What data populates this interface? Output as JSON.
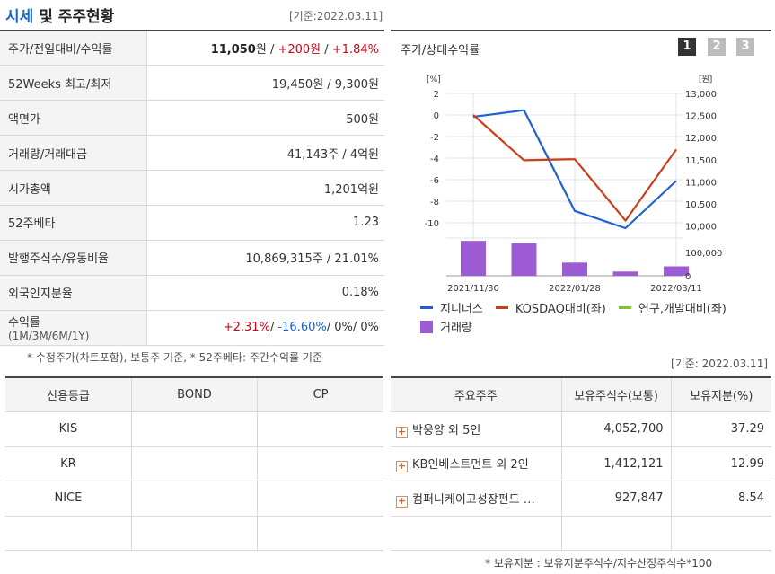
{
  "header": {
    "title_highlight": "시세",
    "title_rest": " 및 주주현황",
    "date": "[기준:2022.03.11]"
  },
  "quote": {
    "rows": [
      {
        "label": "주가/전일대비/수익률",
        "price": "11,050",
        "price_unit": "원 / ",
        "change": "+200원",
        "sep": " / ",
        "pct": "+1.84%"
      },
      {
        "label": "52Weeks 최고/최저",
        "value": "19,450원 / 9,300원"
      },
      {
        "label": "액면가",
        "value": "500원"
      },
      {
        "label": "거래량/거래대금",
        "value": "41,143주 / 4억원"
      },
      {
        "label": "시가총액",
        "value": "1,201억원"
      },
      {
        "label": "52주베타",
        "value": "1.23"
      },
      {
        "label": "발행주식수/유동비율",
        "value": "10,869,315주 / 21.01%"
      },
      {
        "label": "외국인지분율",
        "value": "0.18%"
      },
      {
        "label": "수익률",
        "label_sub": "(1M/3M/6M/1Y)",
        "r1": "+2.31%",
        "s1": "/ ",
        "r2": "-16.60%",
        "s2": "/ ",
        "r3": "0%",
        "s3": "/ ",
        "r4": "0%"
      }
    ],
    "note": "* 수정주가(차트포함), 보통주 기준, * 52주베타: 주간수익률 기준"
  },
  "credit": {
    "headers": [
      "신용등급",
      "BOND",
      "CP"
    ],
    "rows": [
      [
        "KIS",
        "",
        ""
      ],
      [
        "KR",
        "",
        ""
      ],
      [
        "NICE",
        "",
        ""
      ],
      [
        "",
        "",
        ""
      ]
    ]
  },
  "chart": {
    "title": "주가/상대수익률",
    "pages": [
      "1",
      "2",
      "3"
    ],
    "legend": [
      {
        "name": "지니너스",
        "color": "#1c62d6",
        "kind": "line"
      },
      {
        "name": "KOSDAQ대비(좌)",
        "color": "#c8401a",
        "kind": "line"
      },
      {
        "name": "연구,개발대비(좌)",
        "color": "#7cc52a",
        "kind": "line"
      },
      {
        "name": "거래량",
        "color": "#9d5cd4",
        "kind": "bar"
      }
    ]
  },
  "chart_data": {
    "type": "line",
    "x": [
      "2021/11/30",
      "2021/12/28",
      "2022/01/28",
      "2022/02/28",
      "2022/03/11"
    ],
    "x_tick_labels": [
      "2021/11/30",
      "2022/01/28",
      "2022/03/11"
    ],
    "left_axis": {
      "unit": "[%]",
      "ticks": [
        2,
        0,
        -2,
        -4,
        -6,
        -8,
        -10
      ],
      "ylim": [
        -10.5,
        2
      ]
    },
    "right_axis": {
      "unit": "[원]",
      "ticks": [
        "13,000",
        "12,500",
        "12,000",
        "11,500",
        "11,000",
        "10,500",
        "10,000"
      ],
      "ylim": [
        9950,
        13000
      ]
    },
    "volume_axis": {
      "ticks": [
        "100,000",
        "0"
      ],
      "ylim": [
        0,
        160000
      ]
    },
    "series": [
      {
        "name": "지니너스",
        "axis": "right",
        "color": "#1c62d6",
        "values": [
          12470,
          12620,
          10340,
          9950,
          11020
        ]
      },
      {
        "name": "KOSDAQ대비(좌)",
        "axis": "left",
        "color": "#c8401a",
        "values": [
          0.0,
          -4.2,
          -4.1,
          -9.8,
          -3.2
        ]
      },
      {
        "name": "거래량",
        "axis": "volume",
        "kind": "bar",
        "color": "#9d5cd4",
        "values": [
          148000,
          138000,
          56000,
          18000,
          40000
        ]
      }
    ]
  },
  "shareholders": {
    "date": "[기준: 2022.03.11]",
    "headers": [
      "주요주주",
      "보유주식수(보통)",
      "보유지분(%)"
    ],
    "rows": [
      {
        "name": "박웅양 외 5인",
        "shares": "4,052,700",
        "pct": "37.29"
      },
      {
        "name": "KB인베스트먼트 외 2인",
        "shares": "1,412,121",
        "pct": "12.99"
      },
      {
        "name": "컴퍼니케이고성장펀드 …",
        "shares": "927,847",
        "pct": "8.54"
      }
    ],
    "note": "* 보유지분 : 보유지분주식수/지수산정주식수*100"
  }
}
